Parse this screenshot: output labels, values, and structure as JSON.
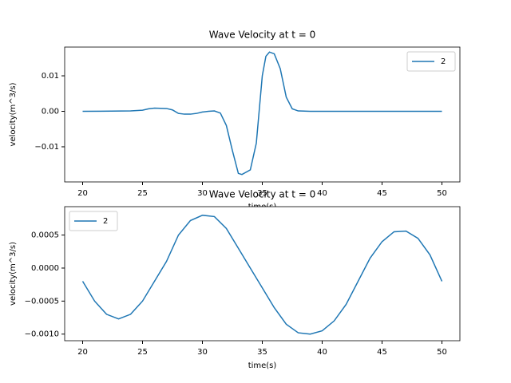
{
  "chart_data": [
    {
      "type": "line",
      "title": "Wave Velocity at t = 0",
      "x_label": "time(s)",
      "y_label": "velocity(m^3/s)",
      "x": [
        20,
        24,
        25,
        25.5,
        26,
        27,
        27.5,
        28,
        28.5,
        29,
        29.5,
        30,
        30.5,
        31,
        31.5,
        32,
        32.5,
        33,
        33.3,
        34,
        34.5,
        35,
        35.3,
        35.6,
        36,
        36.5,
        37,
        37.5,
        38,
        39,
        50
      ],
      "series": [
        {
          "name": "2",
          "color": "#1f77b4",
          "values": [
            0,
            0.0001,
            0.0003,
            0.0007,
            0.0009,
            0.0008,
            0.0004,
            -0.0006,
            -0.0008,
            -0.0008,
            -0.0006,
            -0.0002,
            0,
            0.0001,
            -0.0005,
            -0.004,
            -0.011,
            -0.0175,
            -0.0178,
            -0.0165,
            -0.009,
            0.01,
            0.0155,
            0.0167,
            0.0162,
            0.012,
            0.004,
            0.0007,
            0.0001,
            0,
            0
          ]
        }
      ],
      "xlim": [
        18.5,
        51.5
      ],
      "xticks": [
        20,
        25,
        30,
        35,
        40,
        45,
        50
      ],
      "ylim": [
        -0.0199,
        0.0181
      ],
      "yticks": [
        {
          "value": -0.01,
          "label": "−0.01"
        },
        {
          "value": 0,
          "label": "0.00"
        },
        {
          "value": 0.01,
          "label": "0.01"
        }
      ],
      "legend": "upper right"
    },
    {
      "type": "line",
      "title": "Wave Velocity at t = 0",
      "x_label": "time(s)",
      "y_label": "velocity(m^3/s)",
      "x": [
        20,
        21,
        22,
        23,
        24,
        25,
        26,
        27,
        28,
        29,
        30,
        31,
        32,
        33,
        34,
        35,
        36,
        37,
        38,
        39,
        40,
        41,
        42,
        43,
        44,
        45,
        46,
        47,
        48,
        49,
        50
      ],
      "series": [
        {
          "name": "2",
          "color": "#1f77b4",
          "values": [
            -0.0002,
            -0.0005,
            -0.0007,
            -0.00077,
            -0.0007,
            -0.0005,
            -0.0002,
            0.0001,
            0.0005,
            0.00072,
            0.0008,
            0.00078,
            0.0006,
            0.0003,
            0,
            -0.0003,
            -0.0006,
            -0.00085,
            -0.00098,
            -0.001,
            -0.00095,
            -0.0008,
            -0.00055,
            -0.0002,
            0.00015,
            0.0004,
            0.00055,
            0.00056,
            0.00045,
            0.0002,
            -0.0002
          ]
        }
      ],
      "xlim": [
        18.5,
        51.5
      ],
      "xticks": [
        20,
        25,
        30,
        35,
        40,
        45,
        50
      ],
      "ylim": [
        -0.0011,
        0.00093
      ],
      "yticks": [
        {
          "value": -0.001,
          "label": "−0.0010"
        },
        {
          "value": -0.0005,
          "label": "−0.0005"
        },
        {
          "value": 0,
          "label": "0.0000"
        },
        {
          "value": 0.0005,
          "label": "0.0005"
        }
      ],
      "legend": "upper left"
    }
  ]
}
